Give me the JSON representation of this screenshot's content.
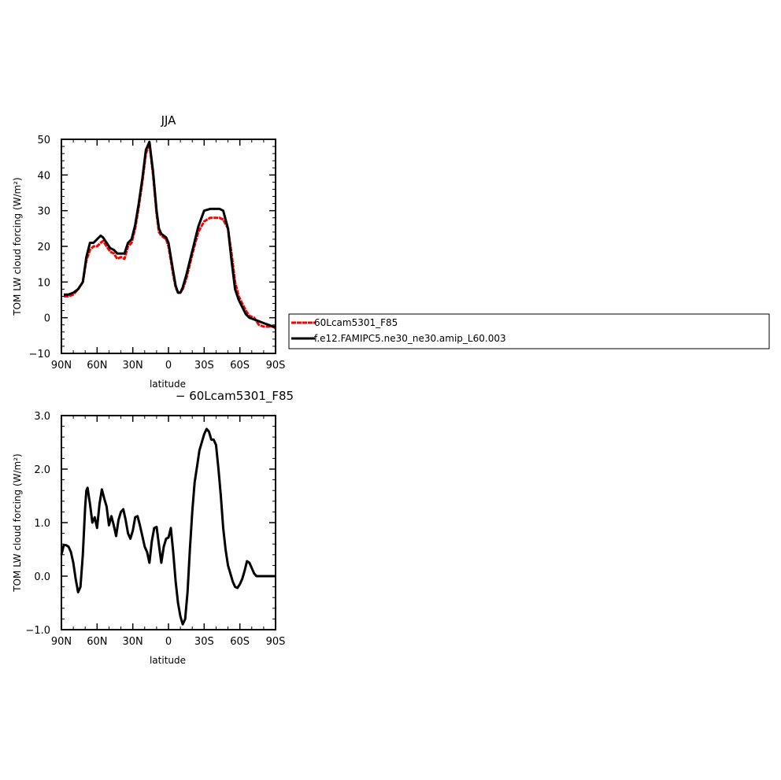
{
  "chart_data": [
    {
      "type": "line",
      "title": "JJA",
      "xlabel": "latitude",
      "ylabel": "TOM LW cloud forcing (W/m²)",
      "xlim": [
        90,
        -90
      ],
      "ylim": [
        -10,
        50
      ],
      "x_ticks": [
        90,
        60,
        30,
        0,
        -30,
        -60,
        -90
      ],
      "x_tick_labels": [
        "90N",
        "60N",
        "30N",
        "0",
        "30S",
        "60S",
        "90S"
      ],
      "y_ticks": [
        -10,
        0,
        10,
        20,
        30,
        40,
        50
      ],
      "y_tick_labels": [
        "−10",
        "0",
        "10",
        "20",
        "30",
        "40",
        "50"
      ],
      "legend_position": "right, outside plot",
      "series": [
        {
          "name": "60Lcam5301_F85",
          "color": "#ff0000",
          "dash": "dashed",
          "x": [
            88,
            84,
            80,
            76,
            72,
            69,
            66,
            63,
            60,
            57,
            55,
            52,
            49,
            46,
            43,
            40,
            37,
            34,
            31,
            28,
            25,
            22,
            19,
            16,
            13,
            10,
            8,
            6,
            4,
            2,
            0,
            -2,
            -4,
            -6,
            -8,
            -10,
            -12,
            -15,
            -18,
            -21,
            -25,
            -30,
            -35,
            -40,
            -43,
            -46,
            -50,
            -53,
            -56,
            -59,
            -62,
            -65,
            -68,
            -72,
            -76,
            -80,
            -84,
            -88,
            -90
          ],
          "y": [
            6,
            6,
            6.5,
            8,
            10,
            16,
            19,
            20,
            20,
            21,
            21.5,
            20,
            18.5,
            18,
            16.5,
            17,
            16.5,
            20,
            21,
            25,
            31,
            38,
            46,
            48.8,
            40,
            29,
            24,
            23,
            22.5,
            22,
            20,
            16,
            12,
            8.5,
            7,
            7,
            8,
            11,
            15,
            19,
            24,
            27,
            28,
            28,
            28,
            27.5,
            25,
            18,
            10,
            6,
            4,
            2,
            0.5,
            0,
            -2,
            -2.5,
            -2.5,
            -2.5,
            -3
          ]
        },
        {
          "name": "f.e12.FAMIPC5.ne30_ne30.amip_L60.003",
          "color": "#000000",
          "dash": "solid",
          "x": [
            88,
            84,
            80,
            76,
            72,
            69,
            66,
            63,
            60,
            57,
            55,
            52,
            49,
            46,
            43,
            40,
            37,
            34,
            31,
            28,
            25,
            22,
            19,
            16,
            13,
            10,
            8,
            6,
            4,
            2,
            0,
            -2,
            -4,
            -6,
            -8,
            -10,
            -12,
            -15,
            -18,
            -21,
            -25,
            -30,
            -35,
            -40,
            -43,
            -46,
            -50,
            -53,
            -56,
            -59,
            -62,
            -65,
            -68,
            -72,
            -76,
            -80,
            -84,
            -88,
            -90
          ],
          "y": [
            6.5,
            6.5,
            7,
            8,
            10,
            17,
            21,
            21,
            22,
            23,
            22.5,
            21,
            19.5,
            19,
            18,
            18,
            18,
            21,
            22,
            26,
            32,
            39,
            47,
            49.3,
            41,
            30,
            25,
            23.5,
            23,
            22.5,
            21,
            17,
            13,
            9,
            7,
            7,
            8.5,
            12,
            16,
            20,
            25.5,
            30,
            30.5,
            30.5,
            30.5,
            30,
            25,
            16,
            8,
            5,
            3,
            1,
            0,
            -0.5,
            -1,
            -1.5,
            -2,
            -2.5,
            -2.5
          ]
        }
      ]
    },
    {
      "type": "line",
      "title": "− 60Lcam5301_F85",
      "xlabel": "latitude",
      "ylabel": "TOM LW cloud forcing (W/m²)",
      "xlim": [
        90,
        -90
      ],
      "ylim": [
        -1,
        3
      ],
      "x_ticks": [
        90,
        60,
        30,
        0,
        -30,
        -60,
        -90
      ],
      "x_tick_labels": [
        "90N",
        "60N",
        "30N",
        "0",
        "30S",
        "60S",
        "90S"
      ],
      "y_ticks": [
        -1,
        0,
        1,
        2,
        3
      ],
      "y_tick_labels": [
        "−1.0",
        "0.0",
        "1.0",
        "2.0",
        "3.0"
      ],
      "series": [
        {
          "color": "#000000",
          "dash": "solid",
          "x": [
            90,
            88,
            86,
            84,
            82,
            80,
            78,
            76,
            74,
            72,
            70,
            69,
            68,
            66,
            64,
            62,
            60,
            58,
            56,
            54,
            52,
            50,
            48,
            46,
            44,
            42,
            40,
            38,
            36,
            34,
            32,
            30,
            28,
            26,
            24,
            22,
            20,
            18,
            16,
            14,
            12,
            10,
            8,
            6,
            4,
            2,
            0,
            -2,
            -4,
            -6,
            -8,
            -10,
            -12,
            -14,
            -16,
            -18,
            -20,
            -22,
            -24,
            -26,
            -28,
            -30,
            -32,
            -34,
            -36,
            -38,
            -40,
            -42,
            -44,
            -46,
            -48,
            -50,
            -52,
            -54,
            -56,
            -58,
            -60,
            -62,
            -64,
            -66,
            -68,
            -70,
            -72,
            -74,
            -76,
            -78,
            -80,
            -82,
            -84,
            -86,
            -88,
            -90
          ],
          "y": [
            0.4,
            0.58,
            0.58,
            0.55,
            0.45,
            0.25,
            -0.05,
            -0.3,
            -0.2,
            0.4,
            1.3,
            1.6,
            1.65,
            1.35,
            1.0,
            1.1,
            0.9,
            1.35,
            1.62,
            1.45,
            1.3,
            0.95,
            1.12,
            0.95,
            0.75,
            1.05,
            1.2,
            1.25,
            1.05,
            0.8,
            0.7,
            0.85,
            1.1,
            1.12,
            0.95,
            0.75,
            0.55,
            0.45,
            0.25,
            0.65,
            0.9,
            0.92,
            0.58,
            0.25,
            0.55,
            0.7,
            0.72,
            0.9,
            0.45,
            -0.1,
            -0.5,
            -0.75,
            -0.9,
            -0.8,
            -0.3,
            0.5,
            1.2,
            1.75,
            2.05,
            2.35,
            2.5,
            2.65,
            2.75,
            2.7,
            2.55,
            2.55,
            2.45,
            2.0,
            1.5,
            0.9,
            0.5,
            0.2,
            0.05,
            -0.1,
            -0.2,
            -0.22,
            -0.15,
            -0.05,
            0.1,
            0.28,
            0.25,
            0.15,
            0.05,
            0.0,
            0.0,
            0.0,
            0.0,
            0.0,
            0.0,
            0.0,
            0.0,
            0.0
          ]
        }
      ]
    }
  ]
}
